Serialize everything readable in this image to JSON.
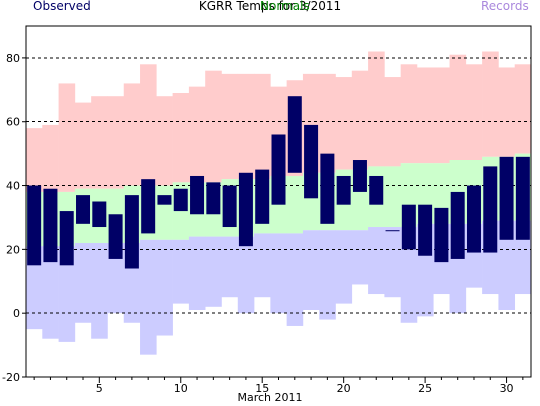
{
  "chart_data": {
    "type": "bar",
    "title": "KGRR Temps for 3/2011",
    "xlabel": "March 2011",
    "ylabel": "",
    "ylim": [
      -20,
      90
    ],
    "xlim": [
      0.5,
      31.5
    ],
    "y_ticks": [
      -20,
      0,
      20,
      40,
      60,
      80
    ],
    "x_ticks": [
      5,
      10,
      15,
      20,
      25,
      30
    ],
    "grid": "horizontal dashed",
    "legend": [
      "Observed",
      "Normals",
      "Records"
    ],
    "days": [
      1,
      2,
      3,
      4,
      5,
      6,
      7,
      8,
      9,
      10,
      11,
      12,
      13,
      14,
      15,
      16,
      17,
      18,
      19,
      20,
      21,
      22,
      23,
      24,
      25,
      26,
      27,
      28,
      29,
      30,
      31
    ],
    "series": [
      {
        "name": "Records",
        "color": "#ffcccc",
        "high": [
          58,
          59,
          72,
          66,
          68,
          68,
          72,
          78,
          68,
          69,
          71,
          76,
          75,
          75,
          75,
          71,
          73,
          75,
          75,
          74,
          76,
          82,
          74,
          78,
          77,
          77,
          81,
          78,
          82,
          77,
          78
        ],
        "low_color": "#ccccff",
        "low": [
          -5,
          -8,
          -9,
          -3,
          -8,
          0,
          -3,
          -13,
          -7,
          3,
          1,
          2,
          5,
          0,
          5,
          0,
          -4,
          1,
          -2,
          3,
          9,
          6,
          5,
          -3,
          -1,
          6,
          0,
          8,
          6,
          1,
          6
        ]
      },
      {
        "name": "Normals",
        "color": "#ccffcc",
        "high": [
          38,
          38,
          38,
          39,
          39,
          39,
          40,
          40,
          40,
          41,
          41,
          41,
          42,
          42,
          42,
          43,
          43,
          44,
          44,
          45,
          45,
          46,
          46,
          47,
          47,
          47,
          48,
          48,
          49,
          49,
          50
        ],
        "low": [
          21,
          21,
          21,
          22,
          22,
          22,
          22,
          23,
          23,
          23,
          24,
          24,
          24,
          24,
          25,
          25,
          25,
          26,
          26,
          26,
          26,
          27,
          27,
          27,
          28,
          28,
          28,
          28,
          29,
          29,
          29
        ]
      },
      {
        "name": "Observed",
        "color": "#000066",
        "high": [
          40,
          39,
          32,
          37,
          35,
          31,
          37,
          42,
          37,
          39,
          43,
          41,
          40,
          44,
          45,
          56,
          68,
          59,
          50,
          43,
          48,
          43,
          26,
          34,
          34,
          33,
          38,
          40,
          46,
          49,
          49
        ],
        "low": [
          15,
          16,
          15,
          28,
          27,
          17,
          14,
          25,
          34,
          32,
          31,
          31,
          27,
          21,
          28,
          34,
          44,
          36,
          28,
          34,
          38,
          34,
          26,
          20,
          18,
          16,
          17,
          19,
          19,
          23,
          23
        ]
      }
    ]
  }
}
